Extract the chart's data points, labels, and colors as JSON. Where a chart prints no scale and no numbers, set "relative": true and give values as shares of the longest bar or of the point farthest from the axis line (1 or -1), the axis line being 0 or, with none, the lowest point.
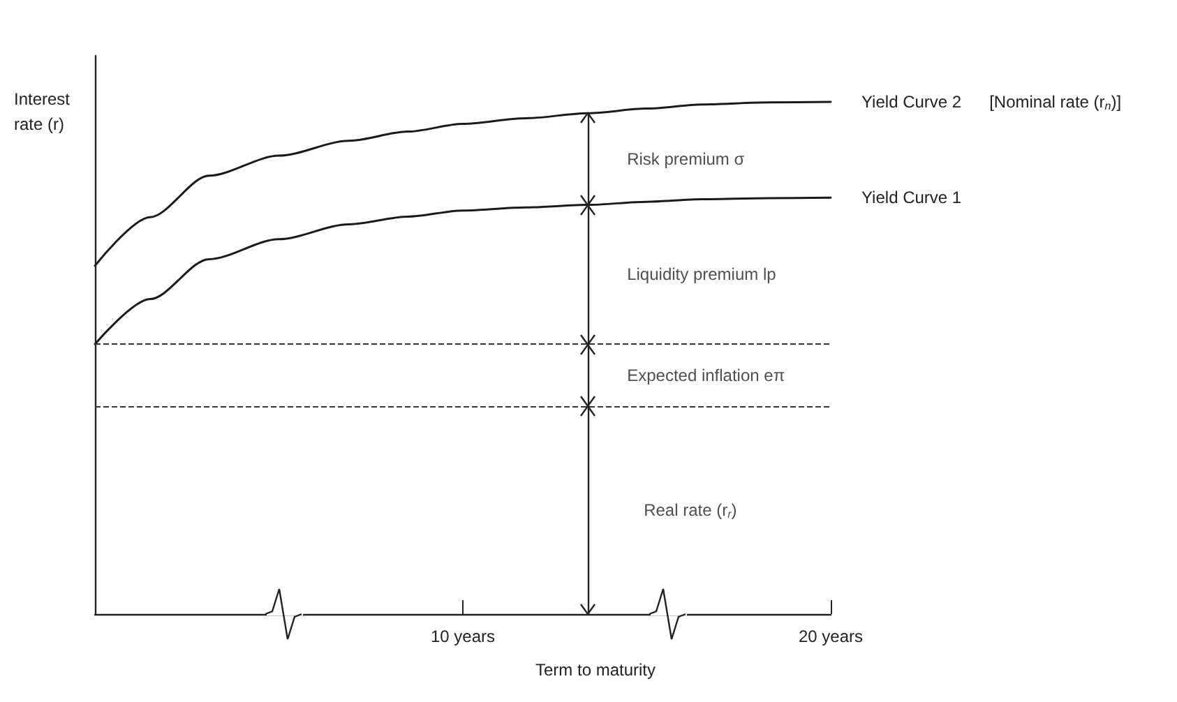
{
  "chart_data": {
    "type": "line",
    "relative": true,
    "ylabel": "Interest rate (r)",
    "xlabel": "Term to maturity",
    "x": [
      0,
      1.5,
      3.1,
      5,
      6.9,
      8.5,
      10,
      11.7,
      13.4,
      15,
      16.5,
      18.3,
      20
    ],
    "xlim": [
      0,
      20
    ],
    "xticks": [
      {
        "value": 10,
        "label": "10 years"
      },
      {
        "value": 20,
        "label": "20 years"
      }
    ],
    "series": [
      {
        "name": "Yield Curve 2",
        "color": "#1a1a1a",
        "values": [
          0.68,
          0.775,
          0.856,
          0.895,
          0.924,
          0.942,
          0.957,
          0.968,
          0.978,
          0.987,
          0.995,
          0.999,
          1
        ]
      },
      {
        "name": "Yield Curve 1",
        "color": "#1a1a1a",
        "values": [
          0.527,
          0.615,
          0.693,
          0.732,
          0.761,
          0.776,
          0.788,
          0.794,
          0.799,
          0.805,
          0.81,
          0.812,
          0.813
        ]
      }
    ],
    "ref_lines": [
      {
        "axis": "y",
        "value": 0.527,
        "line_style": "dashed"
      },
      {
        "axis": "y",
        "value": 0.405,
        "line_style": "dashed"
      },
      {
        "axis": "x",
        "value": 13.4
      }
    ],
    "annotations": [
      "[Nominal rate (r$_{n}$)]",
      "Risk premium σ",
      "Liquidity premium lp",
      "Expected inflation eπ",
      "Real rate (r$_{r}$)"
    ],
    "grid": false,
    "legend": false,
    "marker": "none",
    "line_style": "solid"
  }
}
